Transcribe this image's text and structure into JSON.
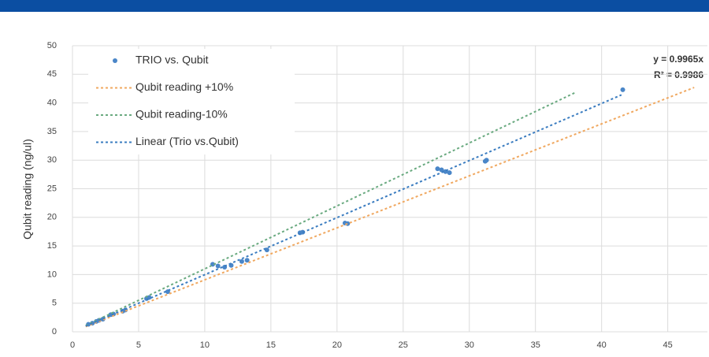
{
  "chart_data": {
    "type": "scatter",
    "y_label": "Qubit reading (ng/ul)",
    "xlim": [
      0,
      48
    ],
    "ylim": [
      0,
      50
    ],
    "xticks": [
      0,
      5,
      10,
      15,
      20,
      25,
      30,
      35,
      40,
      45
    ],
    "yticks": [
      0,
      5,
      10,
      15,
      20,
      25,
      30,
      35,
      40,
      45,
      50
    ],
    "grid": true,
    "legend": "upper-left",
    "annotations": [
      "y = 0.9965x",
      "R² = 0.9986"
    ],
    "series": [
      {
        "name": "TRIO vs. Qubit",
        "type": "scatter",
        "color": "#4a86c8",
        "x": [
          1.2,
          1.5,
          1.8,
          2,
          2.3,
          2.9,
          3.1,
          3.8,
          4,
          5.6,
          5.8,
          7.2,
          10.6,
          11,
          11.5,
          12,
          12.8,
          13.2,
          14.7,
          17.2,
          17.4,
          20.6,
          20.8,
          27.6,
          27.9,
          28.2,
          28.5,
          31.2,
          31.3,
          41.6
        ],
        "values": [
          1.3,
          1.5,
          1.8,
          2,
          2.2,
          3,
          3.1,
          3.6,
          3.8,
          5.8,
          6,
          7,
          11.8,
          11.5,
          11.3,
          11.6,
          12.3,
          12.5,
          14.3,
          17.3,
          17.4,
          19,
          18.9,
          28.5,
          28.3,
          28,
          27.8,
          29.8,
          30,
          42.3
        ]
      },
      {
        "name": "Qubit reading +10%",
        "type": "line",
        "color": "#f0a860",
        "x": [
          1,
          47
        ],
        "values": [
          0.9,
          42.7
        ]
      },
      {
        "name": "Qubit reading-10%",
        "type": "line",
        "color": "#6aaa80",
        "x": [
          1,
          38
        ],
        "values": [
          1.1,
          41.8
        ]
      },
      {
        "name": "Linear (Trio vs.Qubit)",
        "type": "line",
        "color": "#3a7cc0",
        "x": [
          1,
          41.5
        ],
        "values": [
          1,
          41.4
        ]
      }
    ]
  }
}
